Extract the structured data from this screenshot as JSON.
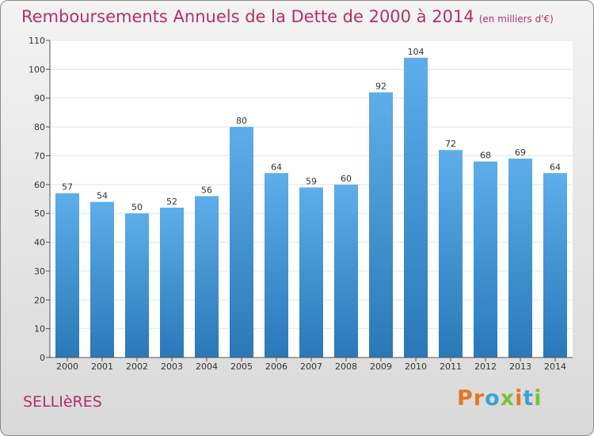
{
  "header": {
    "title": "Remboursements Annuels de la Dette de 2000 à 2014",
    "subtitle": "(en milliers d'€)"
  },
  "footer": {
    "commune": "SELLIèRES",
    "logo_text": "Proxiti"
  },
  "colors": {
    "title": "#b0306a",
    "bar_top": "#5daeea",
    "bar_bottom": "#2a78b8",
    "plot_bg": "#ffffff",
    "grid": "#e4e4e4",
    "axis": "#555555",
    "logo_letters": [
      "#e8771e",
      "#e8771e",
      "#3aa1d8",
      "#7dbf3a",
      "#e8771e",
      "#3aa1d8",
      "#7dbf3a"
    ]
  },
  "chart_data": {
    "type": "bar",
    "categories": [
      "2000",
      "2001",
      "2002",
      "2003",
      "2004",
      "2005",
      "2006",
      "2007",
      "2008",
      "2009",
      "2010",
      "2011",
      "2012",
      "2013",
      "2014"
    ],
    "values": [
      57,
      54,
      50,
      52,
      56,
      80,
      64,
      59,
      60,
      92,
      104,
      72,
      68,
      69,
      64
    ],
    "title": "Remboursements Annuels de la Dette de 2000 à 2014",
    "xlabel": "",
    "ylabel": "",
    "ylim": [
      0,
      110
    ],
    "yticks": [
      0,
      10,
      20,
      30,
      40,
      50,
      60,
      70,
      80,
      90,
      100,
      110
    ],
    "grid": true,
    "legend": "none"
  }
}
